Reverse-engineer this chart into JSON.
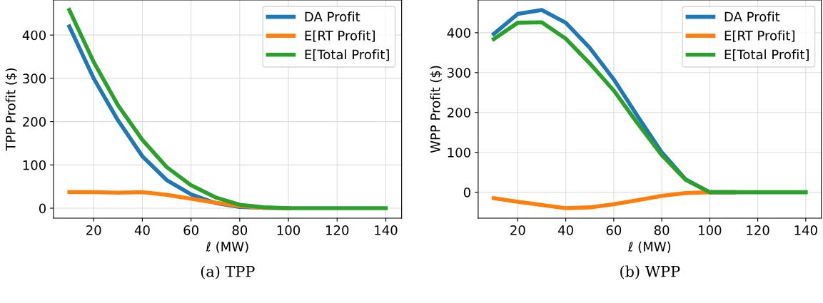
{
  "chart_data": [
    {
      "type": "line",
      "xlabel": "ℓ (MW)",
      "ylabel": "TPP Profit ($)",
      "annotations": [
        "(a) TPP"
      ],
      "x": [
        10,
        20,
        30,
        40,
        50,
        60,
        70,
        80,
        90,
        100,
        110,
        120,
        130,
        140
      ],
      "series": [
        {
          "name": "DA Profit",
          "color": "#1f77b4",
          "values": [
            420,
            300,
            203,
            120,
            65,
            32,
            12,
            3,
            1,
            0,
            null,
            null,
            null,
            null
          ]
        },
        {
          "name": "E[RT Profit]",
          "color": "#ff7f0e",
          "values": [
            37,
            37,
            36,
            37,
            31,
            22,
            13,
            5,
            1,
            0,
            null,
            null,
            null,
            null
          ]
        },
        {
          "name": "E[Total Profit]",
          "color": "#2ca02c",
          "values": [
            458,
            338,
            238,
            158,
            95,
            53,
            25,
            8,
            2,
            0,
            0,
            0,
            0,
            0
          ]
        }
      ],
      "xlim": [
        3.5,
        146.5
      ],
      "xticks": [
        20,
        40,
        60,
        80,
        100,
        120,
        140
      ],
      "ylim": [
        -23,
        481
      ],
      "yticks": [
        0,
        100,
        200,
        300,
        400
      ],
      "grid": true,
      "legend": "top right"
    },
    {
      "type": "line",
      "xlabel": "ℓ (MW)",
      "ylabel": "WPP Profit ($)",
      "annotations": [
        "(b) WPP"
      ],
      "x": [
        10,
        20,
        30,
        40,
        50,
        60,
        70,
        80,
        90,
        100,
        110,
        120,
        130,
        140
      ],
      "series": [
        {
          "name": "DA Profit",
          "color": "#1f77b4",
          "values": [
            397,
            447,
            457,
            425,
            362,
            283,
            190,
            100,
            32,
            0,
            0,
            null,
            null,
            null
          ]
        },
        {
          "name": "E[RT Profit]",
          "color": "#ff7f0e",
          "values": [
            -15,
            -24,
            -32,
            -40,
            -38,
            -30,
            -20,
            -9,
            -2,
            0,
            0,
            null,
            null,
            null
          ]
        },
        {
          "name": "E[Total Profit]",
          "color": "#2ca02c",
          "values": [
            384,
            425,
            426,
            385,
            323,
            255,
            172,
            93,
            31,
            0,
            0,
            0,
            0,
            0
          ]
        }
      ],
      "xlim": [
        3.5,
        146.5
      ],
      "xticks": [
        20,
        40,
        60,
        80,
        100,
        120,
        140
      ],
      "ylim": [
        -65,
        482
      ],
      "yticks": [
        0,
        100,
        200,
        300,
        400
      ],
      "grid": true,
      "legend": "top right"
    }
  ]
}
